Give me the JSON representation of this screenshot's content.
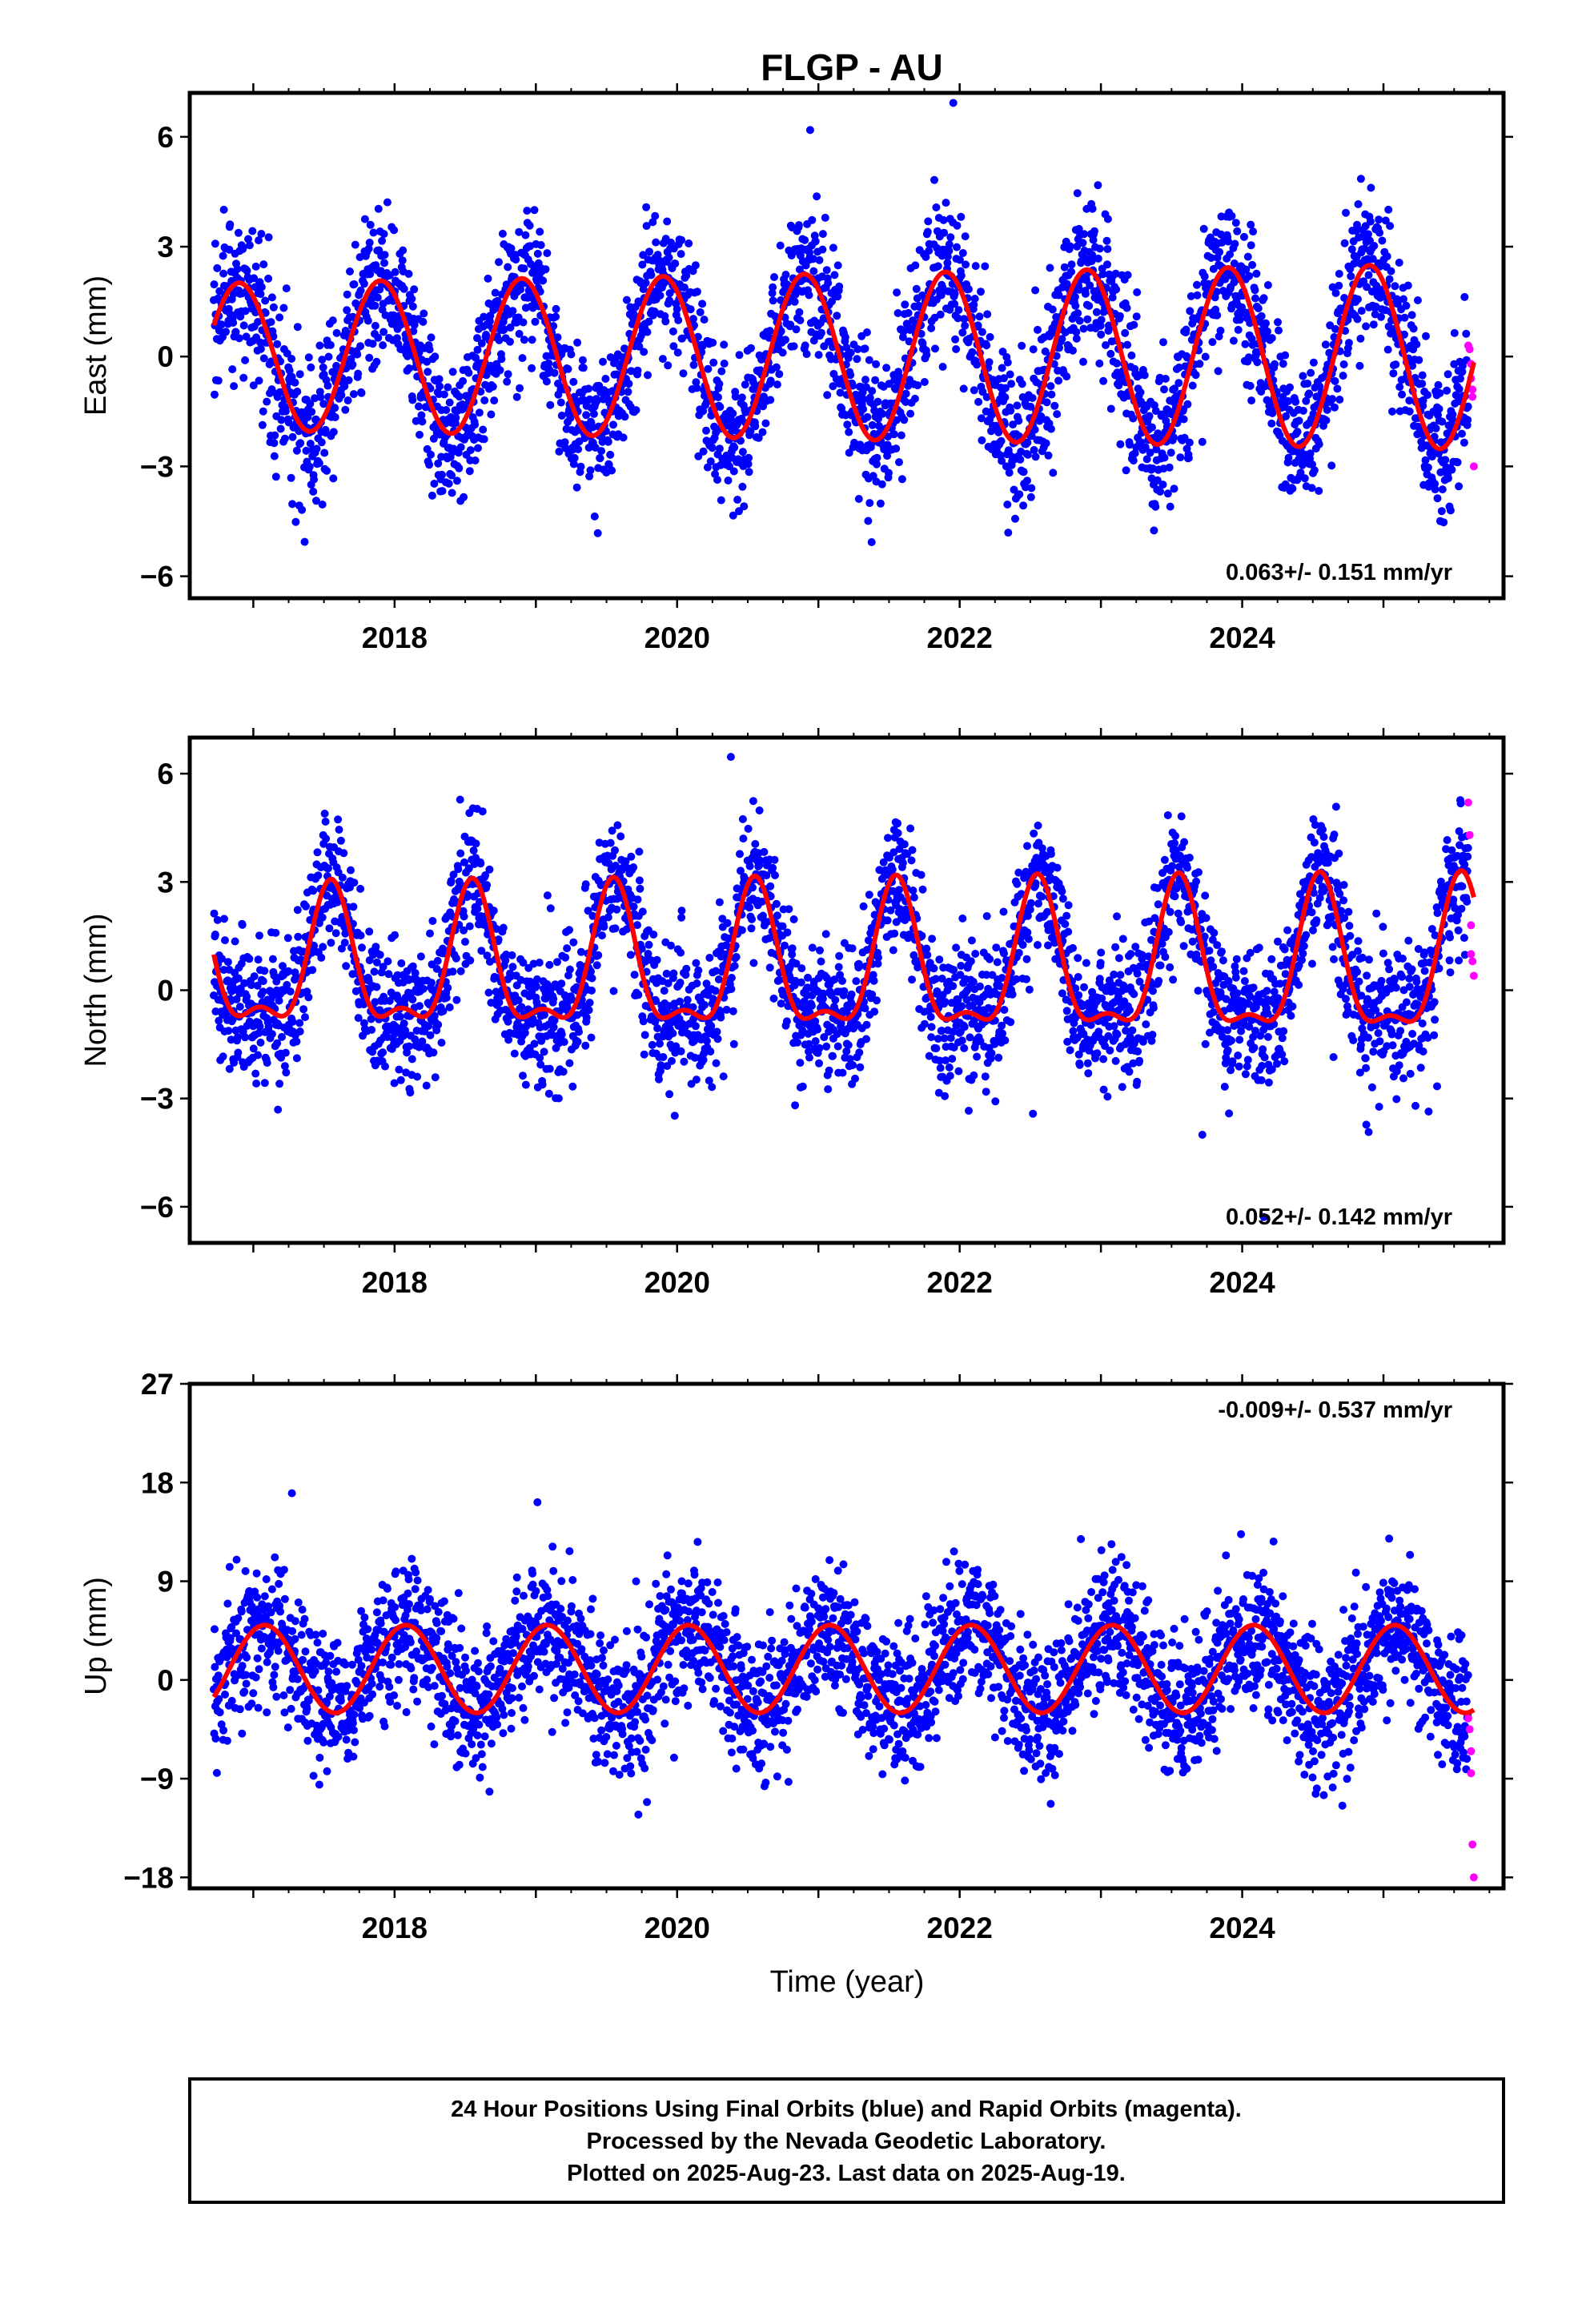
{
  "title": "FLGP - AU",
  "xlabel": "Time (year)",
  "footer_lines": [
    "24 Hour Positions Using Final Orbits (blue) and Rapid Orbits (magenta).",
    "Processed by the Nevada Geodetic Laboratory.",
    "Plotted on 2025-Aug-23. Last data on 2025-Aug-19."
  ],
  "colors": {
    "final_orbits": "#0000ff",
    "rapid_orbits": "#ff00ff",
    "model_fit": "#ff0000",
    "frame": "#000000"
  },
  "chart_data": [
    {
      "type": "scatter",
      "component": "east",
      "ylabel": "East (mm)",
      "ylim": [
        -6.6,
        7.2
      ],
      "xlim": [
        2016.55,
        2025.85
      ],
      "yticks": [
        -6,
        -3,
        0,
        3,
        6
      ],
      "xticks": [
        2018,
        2020,
        2022,
        2024
      ],
      "rate_text": "0.063+/- 0.151 mm/yr",
      "rate_position": "bottom-right",
      "grid": false,
      "series": [
        {
          "name": "Final Orbits",
          "color": "#0000ff",
          "model": {
            "offset": 0.0,
            "amplitude": 2.0,
            "amplitude_growth_per_year": 0.06,
            "peak_phase": 0.9,
            "semiannual_amplitude": 0.0,
            "noise_std": 1.0,
            "t_start": 2016.72,
            "t_end": 2025.6
          }
        },
        {
          "name": "Rapid Orbits",
          "color": "#ff00ff",
          "x": [
            2025.6,
            2025.61,
            2025.62,
            2025.62,
            2025.63,
            2025.63,
            2025.64
          ],
          "y": [
            0.3,
            0.2,
            -0.2,
            -0.6,
            -0.9,
            -1.1,
            -3.0
          ]
        }
      ],
      "fit": {
        "name": "Model",
        "color": "#ff0000",
        "x_range": [
          2016.72,
          2025.64
        ],
        "offset": 0.0,
        "amplitude": 2.0,
        "amplitude_growth_per_year": 0.06,
        "peak_phase": 0.9,
        "semiannual_amplitude": 0.0
      }
    },
    {
      "type": "scatter",
      "component": "north",
      "ylabel": "North (mm)",
      "ylim": [
        -7.0,
        7.0
      ],
      "xlim": [
        2016.55,
        2025.85
      ],
      "yticks": [
        -6,
        -3,
        0,
        3,
        6
      ],
      "xticks": [
        2018,
        2020,
        2022,
        2024
      ],
      "rate_text": "0.052+/- 0.142 mm/yr",
      "rate_position": "bottom-right",
      "grid": false,
      "series": [
        {
          "name": "Final Orbits",
          "color": "#0000ff",
          "model": {
            "offset": 0.55,
            "amplitude": 1.75,
            "amplitude_growth_per_year": 0.03,
            "peak_phase": 0.55,
            "semiannual_amplitude": 0.75,
            "noise_std": 0.95,
            "t_start": 2016.72,
            "t_end": 2025.6
          }
        },
        {
          "name": "Rapid Orbits",
          "color": "#ff00ff",
          "x": [
            2025.6,
            2025.61,
            2025.62,
            2025.62,
            2025.63,
            2025.64
          ],
          "y": [
            5.2,
            4.3,
            1.8,
            1.0,
            0.8,
            0.4
          ]
        }
      ],
      "fit": {
        "name": "Model",
        "color": "#ff0000",
        "x_range": [
          2016.72,
          2025.64
        ],
        "offset": 0.55,
        "amplitude": 1.75,
        "amplitude_growth_per_year": 0.03,
        "peak_phase": 0.55,
        "semiannual_amplitude": 0.75
      }
    },
    {
      "type": "scatter",
      "component": "up",
      "ylabel": "Up (mm)",
      "ylim": [
        -19.0,
        27.0
      ],
      "xlim": [
        2016.55,
        2025.85
      ],
      "yticks": [
        -18,
        -9,
        0,
        9,
        18,
        27
      ],
      "xticks": [
        2018,
        2020,
        2022,
        2024
      ],
      "rate_text": "-0.009+/- 0.537 mm/yr",
      "rate_position": "top-right",
      "grid": false,
      "series": [
        {
          "name": "Final Orbits",
          "color": "#0000ff",
          "model": {
            "offset": 1.0,
            "amplitude": 4.0,
            "amplitude_growth_per_year": 0.0,
            "peak_phase": 0.08,
            "semiannual_amplitude": 0.0,
            "noise_std": 3.2,
            "t_start": 2016.72,
            "t_end": 2025.6
          }
        },
        {
          "name": "Rapid Orbits",
          "color": "#ff00ff",
          "x": [
            2025.6,
            2025.61,
            2025.62,
            2025.62,
            2025.63,
            2025.64
          ],
          "y": [
            -3.5,
            -4.5,
            -6.5,
            -8.5,
            -15.0,
            -18.0
          ]
        }
      ],
      "fit": {
        "name": "Model",
        "color": "#ff0000",
        "x_range": [
          2016.72,
          2025.64
        ],
        "offset": 1.0,
        "amplitude": 4.0,
        "amplitude_growth_per_year": 0.0,
        "peak_phase": 0.08,
        "semiannual_amplitude": 0.0
      }
    }
  ]
}
